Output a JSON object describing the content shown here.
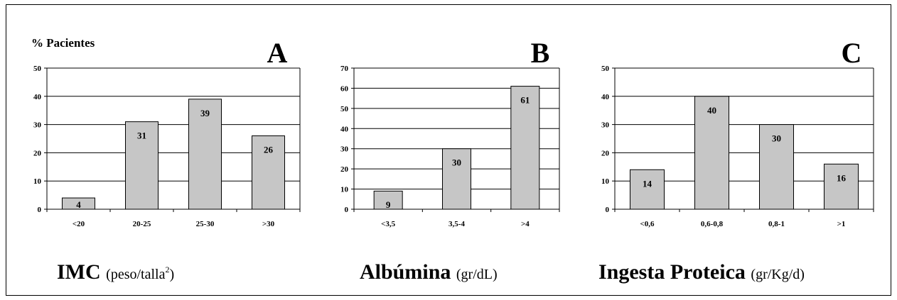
{
  "y_axis_label": "% Pacientes",
  "chart_data": [
    {
      "type": "bar",
      "letter": "A",
      "categories": [
        "<20",
        "20-25",
        "25-30",
        ">30"
      ],
      "values": [
        4,
        31,
        39,
        26
      ],
      "data_labels": [
        "4",
        "31",
        "39",
        "26"
      ],
      "ylim": [
        0,
        50
      ],
      "yticks": [
        "0",
        "10",
        "20",
        "30",
        "40",
        "50"
      ],
      "grid": true,
      "caption": {
        "main": "IMC",
        "unit": "(peso/talla",
        "sup": "2",
        "unit_end": ")"
      }
    },
    {
      "type": "bar",
      "letter": "B",
      "categories": [
        "<3,5",
        "3,5-4",
        ">4"
      ],
      "values": [
        9,
        30,
        61
      ],
      "data_labels": [
        "9",
        "30",
        "61"
      ],
      "ylim": [
        0,
        70
      ],
      "yticks": [
        "0",
        "10",
        "20",
        "30",
        "40",
        "50",
        "60",
        "70"
      ],
      "grid": true,
      "caption": {
        "main": "Albúmina",
        "unit": "(gr/dL)"
      }
    },
    {
      "type": "bar",
      "letter": "C",
      "categories": [
        "<0,6",
        "0,6-0,8",
        "0,8-1",
        ">1"
      ],
      "values": [
        14,
        40,
        30,
        16
      ],
      "data_labels": [
        "14",
        "40",
        "30",
        "16"
      ],
      "ylim": [
        0,
        50
      ],
      "yticks": [
        "0",
        "10",
        "20",
        "30",
        "40",
        "50"
      ],
      "grid": true,
      "caption": {
        "main": "Ingesta Proteica",
        "unit": "(gr/Kg/d)"
      }
    }
  ],
  "colors": {
    "bar_fill": "#c6c6c6",
    "bar_stroke": "#000000",
    "grid": "#000000",
    "axis": "#000000"
  }
}
